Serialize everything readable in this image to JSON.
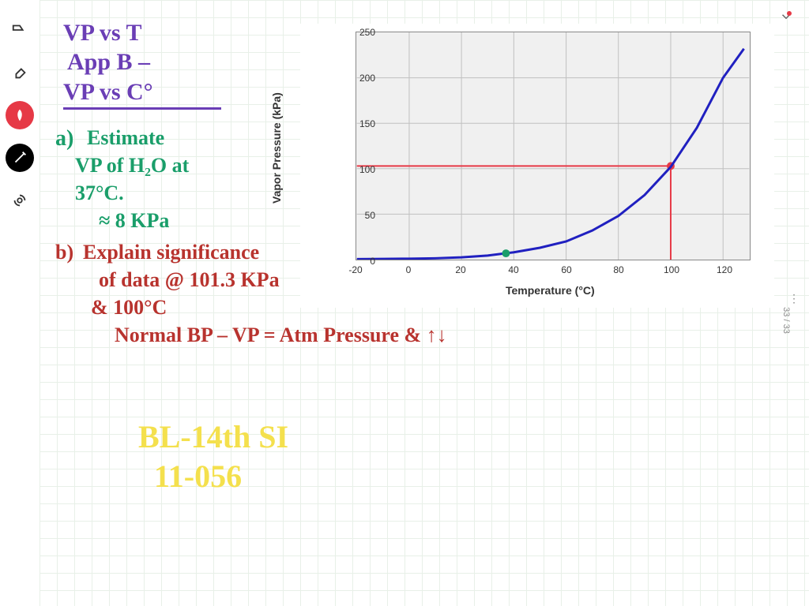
{
  "toolbar": {
    "shape_icon": "shape",
    "eraser_icon": "eraser",
    "pen_red_icon": "pen",
    "pen_black_icon": "pen",
    "cast_icon": "cast",
    "select_icon": "select",
    "undo_icon": "undo",
    "share_icon": "share",
    "image_icon": "image",
    "add_icon": "add"
  },
  "chart": {
    "type": "line",
    "y_label": "Vapor Pressure (kPa)",
    "x_label": "Temperature (°C)",
    "x_min": -20,
    "x_max": 130,
    "y_min": 0,
    "y_max": 250,
    "x_ticks": [
      -20,
      0,
      20,
      40,
      60,
      80,
      100,
      120
    ],
    "y_ticks": [
      0,
      50,
      100,
      150,
      200,
      250
    ],
    "curve_color": "#2020c0",
    "marker_color": "#e63946",
    "grid_color": "#c0c0c0",
    "bg_color": "#f0f0f0",
    "curve_points": [
      [
        -20,
        0.5
      ],
      [
        -10,
        0.8
      ],
      [
        0,
        1
      ],
      [
        10,
        1.5
      ],
      [
        20,
        2.5
      ],
      [
        30,
        4.5
      ],
      [
        37,
        7
      ],
      [
        40,
        8
      ],
      [
        50,
        13
      ],
      [
        60,
        20
      ],
      [
        70,
        32
      ],
      [
        80,
        48
      ],
      [
        90,
        71
      ],
      [
        100,
        102
      ],
      [
        110,
        145
      ],
      [
        120,
        200
      ],
      [
        128,
        232
      ]
    ],
    "red_line_y": 103,
    "red_line_x": 100,
    "green_dot": [
      37,
      7
    ]
  },
  "notes": {
    "title1": "VP vs T",
    "title2": "App B –",
    "title3": "VP vs C°",
    "a_label": "a)",
    "a_text1": "Estimate",
    "a_text2": "VP of H₂O at",
    "a_text3": "37°C.",
    "a_text4": "≈ 8 KPa",
    "b_label": "b)",
    "b_text1": "Explain significance",
    "b_text2": "of data @ 101.3 KPa",
    "b_text3": "& 100°C",
    "b_text4": "Normal BP – VP = Atm Pressure & ↑↓",
    "ref1": "BL-14th SI",
    "ref2": "11-056"
  },
  "page": "33 / 33",
  "colors": {
    "purple": "#6a3eb5",
    "green": "#1a9e6a",
    "red": "#b8332e",
    "yellow": "#f4e04d"
  }
}
